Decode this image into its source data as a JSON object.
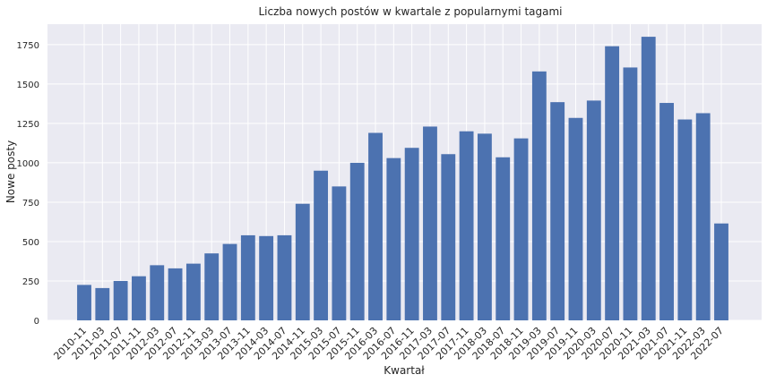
{
  "chart_data": {
    "type": "bar",
    "title": "Liczba nowych postów w kwartale z popularnymi tagami",
    "xlabel": "Kwartał",
    "ylabel": "Nowe posty",
    "ylim": [
      0,
      1880
    ],
    "yticks": [
      0,
      250,
      500,
      750,
      1000,
      1250,
      1500,
      1750
    ],
    "grid": true,
    "bar_color": "#4c72b0",
    "background_color": "#eaeaf2",
    "categories": [
      "2010-11",
      "2011-03",
      "2011-07",
      "2011-11",
      "2012-03",
      "2012-07",
      "2012-11",
      "2013-03",
      "2013-07",
      "2013-11",
      "2014-03",
      "2014-07",
      "2014-11",
      "2015-03",
      "2015-07",
      "2015-11",
      "2016-03",
      "2016-07",
      "2016-11",
      "2017-03",
      "2017-07",
      "2017-11",
      "2018-03",
      "2018-07",
      "2018-11",
      "2019-03",
      "2019-07",
      "2019-11",
      "2020-03",
      "2020-07",
      "2020-11",
      "2021-03",
      "2021-07",
      "2021-11",
      "2022-03",
      "2022-07"
    ],
    "values": [
      225,
      205,
      250,
      280,
      350,
      330,
      360,
      425,
      485,
      540,
      535,
      540,
      740,
      950,
      850,
      1000,
      1190,
      1030,
      1095,
      1230,
      1055,
      1200,
      1185,
      1035,
      1155,
      1580,
      1385,
      1285,
      1395,
      1740,
      1605,
      1800,
      1380,
      1275,
      1315,
      615
    ]
  }
}
